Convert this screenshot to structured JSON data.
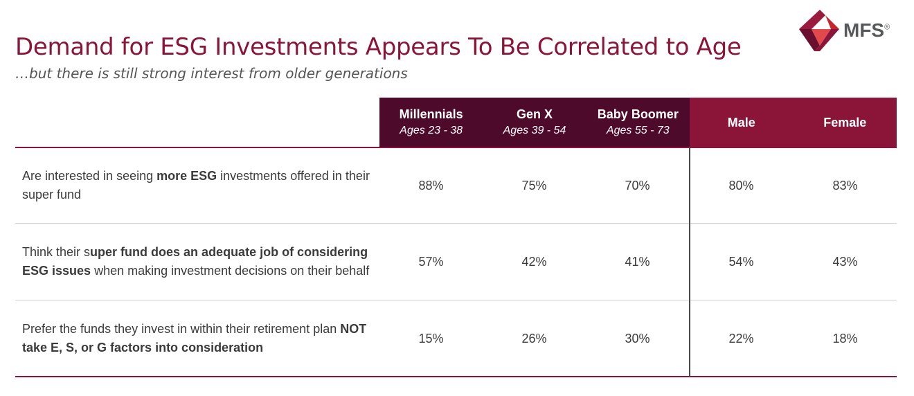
{
  "header": {
    "title": "Demand for ESG Investments Appears To Be Correlated to Age",
    "subtitle": "…but there is still strong interest from older generations",
    "logo_text": "MFS",
    "logo_registered": "®"
  },
  "colors": {
    "brand": "#8a1538",
    "age_header": "#4d0a2a",
    "gender_header": "#8a1538",
    "text": "#3b3b3b"
  },
  "columns": [
    {
      "name": "Millennials",
      "ages": "Ages 23 - 38"
    },
    {
      "name": "Gen X",
      "ages": "Ages 39 - 54"
    },
    {
      "name": "Baby Boomer",
      "ages": "Ages 55 - 73"
    },
    {
      "name": "Male",
      "ages": ""
    },
    {
      "name": "Female",
      "ages": ""
    }
  ],
  "rows": [
    {
      "label_parts": [
        "Are interested in seeing ",
        "more ESG",
        " investments offered in their super fund"
      ],
      "values": [
        "88%",
        "75%",
        "70%",
        "80%",
        "83%"
      ]
    },
    {
      "label_parts": [
        "Think their s",
        "uper fund does an adequate job of considering ESG issues",
        " when making investment decisions on their behalf"
      ],
      "values": [
        "57%",
        "42%",
        "41%",
        "54%",
        "43%"
      ]
    },
    {
      "label_parts": [
        "Prefer the funds they invest in within their retirement plan ",
        "NOT take E, S, or G factors into consideration",
        ""
      ],
      "values": [
        "15%",
        "26%",
        "30%",
        "22%",
        "18%"
      ]
    }
  ]
}
